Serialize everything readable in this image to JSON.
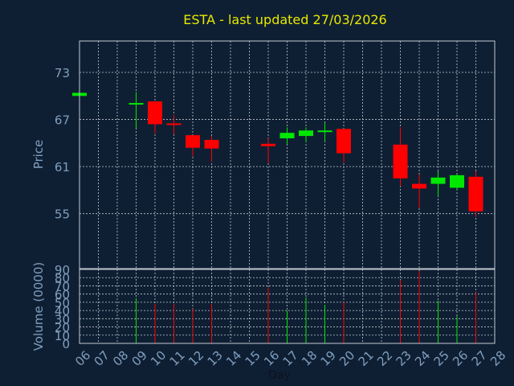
{
  "chart_data": {
    "type": "candlestick",
    "title": "ESTA - last updated 27/03/2026",
    "xlabel": "Day",
    "colors": {
      "background": "#0f1f33",
      "up": "#00e800",
      "down": "#ff0000",
      "title": "#e8e800",
      "axis": "#7f9fbf",
      "grid": "#c0c8d0"
    },
    "x_ticks": [
      "06",
      "07",
      "08",
      "09",
      "10",
      "11",
      "12",
      "13",
      "14",
      "15",
      "16",
      "17",
      "18",
      "19",
      "20",
      "21",
      "22",
      "23",
      "24",
      "25",
      "26",
      "27",
      "28"
    ],
    "price_panel": {
      "ylabel": "Price",
      "ylim": [
        48,
        77
      ],
      "y_ticks": [
        55,
        61,
        67,
        73
      ],
      "candles": [
        {
          "day": "06",
          "open": 70.0,
          "close": 70.4,
          "high": 70.4,
          "low": 70.0
        },
        {
          "day": "09",
          "open": 69.0,
          "close": 69.1,
          "high": 70.5,
          "low": 65.9
        },
        {
          "day": "10",
          "open": 69.3,
          "close": 66.4,
          "high": 69.3,
          "low": 65.2
        },
        {
          "day": "11",
          "open": 66.5,
          "close": 66.3,
          "high": 67.6,
          "low": 65.1
        },
        {
          "day": "12",
          "open": 65.0,
          "close": 63.4,
          "high": 65.0,
          "low": 62.3
        },
        {
          "day": "13",
          "open": 64.4,
          "close": 63.3,
          "high": 64.9,
          "low": 61.6
        },
        {
          "day": "16",
          "open": 63.9,
          "close": 63.6,
          "high": 64.6,
          "low": 61.4
        },
        {
          "day": "17",
          "open": 64.6,
          "close": 65.3,
          "high": 66.0,
          "low": 63.9
        },
        {
          "day": "18",
          "open": 64.9,
          "close": 65.6,
          "high": 66.0,
          "low": 64.1
        },
        {
          "day": "19",
          "open": 65.4,
          "close": 65.6,
          "high": 66.6,
          "low": 64.2
        },
        {
          "day": "20",
          "open": 65.8,
          "close": 62.7,
          "high": 65.8,
          "low": 61.5
        },
        {
          "day": "23",
          "open": 63.8,
          "close": 59.5,
          "high": 66.0,
          "low": 58.5
        },
        {
          "day": "24",
          "open": 58.8,
          "close": 58.2,
          "high": 60.0,
          "low": 55.7
        },
        {
          "day": "25",
          "open": 58.8,
          "close": 59.6,
          "high": 60.4,
          "low": 57.2
        },
        {
          "day": "26",
          "open": 58.3,
          "close": 59.9,
          "high": 60.0,
          "low": 58.0
        },
        {
          "day": "27",
          "open": 59.7,
          "close": 55.3,
          "high": 60.4,
          "low": 54.6
        }
      ]
    },
    "volume_panel": {
      "ylabel": "Volume (0000)",
      "ylim": [
        0,
        90
      ],
      "y_ticks": [
        0,
        10,
        20,
        30,
        40,
        50,
        60,
        70,
        80,
        90
      ],
      "bars": [
        {
          "day": "06",
          "volume": 0,
          "direction": "up"
        },
        {
          "day": "09",
          "volume": 55,
          "direction": "up"
        },
        {
          "day": "10",
          "volume": 48,
          "direction": "down"
        },
        {
          "day": "11",
          "volume": 48,
          "direction": "down"
        },
        {
          "day": "12",
          "volume": 42,
          "direction": "down"
        },
        {
          "day": "13",
          "volume": 48,
          "direction": "down"
        },
        {
          "day": "16",
          "volume": 68,
          "direction": "down"
        },
        {
          "day": "17",
          "volume": 40,
          "direction": "up"
        },
        {
          "day": "18",
          "volume": 56,
          "direction": "up"
        },
        {
          "day": "19",
          "volume": 47,
          "direction": "up"
        },
        {
          "day": "20",
          "volume": 50,
          "direction": "down"
        },
        {
          "day": "23",
          "volume": 77,
          "direction": "down"
        },
        {
          "day": "24",
          "volume": 88,
          "direction": "down"
        },
        {
          "day": "25",
          "volume": 52,
          "direction": "up"
        },
        {
          "day": "26",
          "volume": 33,
          "direction": "up"
        },
        {
          "day": "27",
          "volume": 62,
          "direction": "down"
        }
      ]
    }
  }
}
